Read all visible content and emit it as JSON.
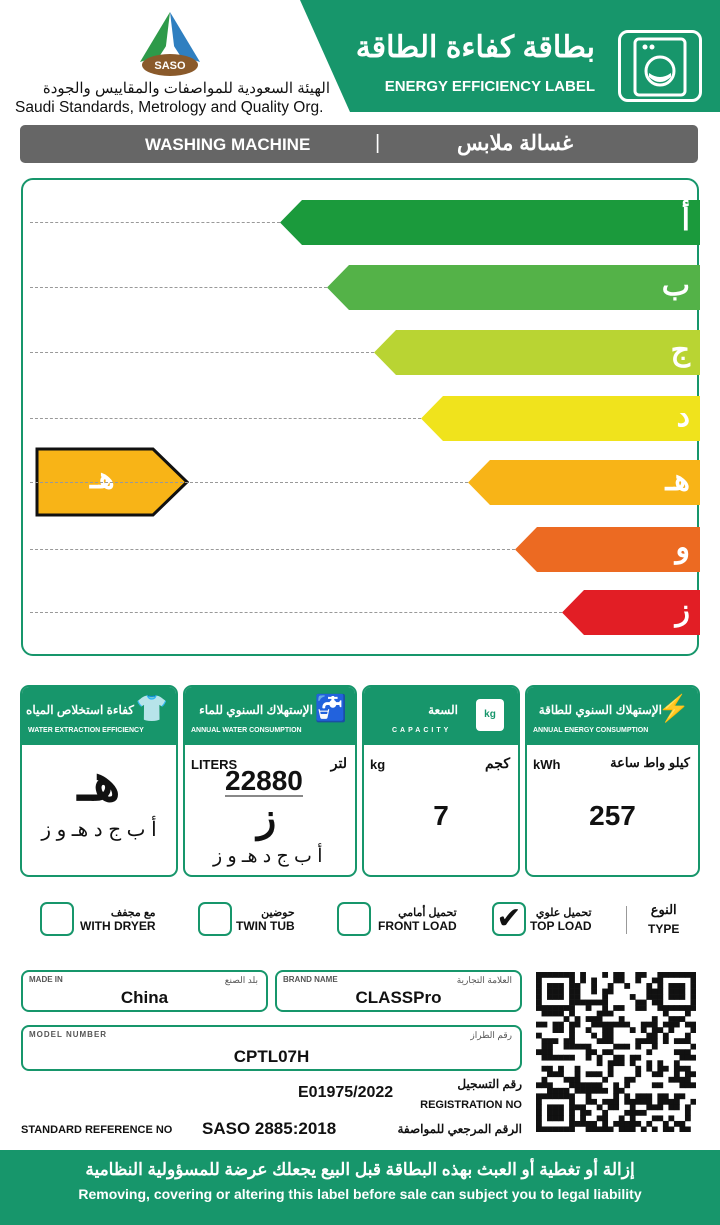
{
  "header": {
    "logo_text": "SASO",
    "org_ar": "الهيئة السعودية للمواصفات والمقاييس والجودة",
    "org_en": "Saudi Standards, Metrology and Quality Org.",
    "title_ar": "بطاقة كفاءة الطاقة",
    "title_en": "ENERGY EFFICIENCY LABEL",
    "icon": "washing-machine-icon"
  },
  "product": {
    "name_en": "WASHING MACHINE",
    "separator": "|",
    "name_ar": "غسالة ملابس"
  },
  "scale": {
    "classes": [
      {
        "label": "أ",
        "color": "#1b9a3c"
      },
      {
        "label": "ب",
        "color": "#54b248"
      },
      {
        "label": "ج",
        "color": "#b9d433"
      },
      {
        "label": "د",
        "color": "#f0e31c"
      },
      {
        "label": "هـ",
        "color": "#f8b417"
      },
      {
        "label": "و",
        "color": "#ec6a22"
      },
      {
        "label": "ز",
        "color": "#e21e25"
      }
    ],
    "rating": "هـ",
    "rating_color": "#f8b417"
  },
  "cards": {
    "water_extraction": {
      "title_ar": "كفاءة استخلاص المياه",
      "title_en": "WATER EXTRACTION EFFICIENCY",
      "value": "هـ",
      "scale": "أ ب ج د هـ و ز",
      "icon": "shirt-drip-icon"
    },
    "water": {
      "title_ar": "الإستهلاك السنوي للماء",
      "title_en": "ANNUAL WATER CONSUMPTION",
      "unit_en": "LITERS",
      "unit_ar": "لتر",
      "value": "22880",
      "class": "ز",
      "scale": "أ ب ج د هـ و ز",
      "icon": "faucet-icon"
    },
    "capacity": {
      "title_ar": "السعة",
      "title_en": "CAPACITY",
      "unit_en": "kg",
      "unit_ar": "كجم",
      "value": "7",
      "icon": "shirt-kg-icon",
      "icon_text": "kg"
    },
    "energy": {
      "title_ar": "الإستهلاك السنوي للطاقة",
      "title_en": "ANNUAL ENERGY CONSUMPTION",
      "unit_en": "kWh",
      "unit_ar": "كيلو واط ساعة",
      "value": "257",
      "icon": "lightning-icon"
    }
  },
  "type": {
    "label_ar": "النوع",
    "label_en": "TYPE",
    "options": [
      {
        "ar": "تحميل علوي",
        "en": "TOP LOAD",
        "checked": true
      },
      {
        "ar": "تحميل أمامي",
        "en": "FRONT LOAD",
        "checked": false
      },
      {
        "ar": "حوضين",
        "en": "TWIN TUB",
        "checked": false
      },
      {
        "ar": "مع مجفف",
        "en": "WITH DRYER",
        "checked": false
      }
    ],
    "check_mark": "✔"
  },
  "info": {
    "made_in": {
      "label_en": "MADE IN",
      "label_ar": "بلد الصنع",
      "value": "China"
    },
    "brand": {
      "label_en": "BRAND NAME",
      "label_ar": "العلامة التجارية",
      "value": "CLASSPro"
    },
    "model": {
      "label_en": "MODEL NUMBER",
      "label_ar": "رقم الطراز",
      "value": "CPTL07H"
    },
    "registration": {
      "label_ar": "رقم التسجيل",
      "label_en": "REGISTRATION NO",
      "value": "E01975/2022"
    },
    "standard": {
      "label_en": "STANDARD REFERENCE NO",
      "label_ar": "الرقم المرجعي للمواصفة",
      "value": "SASO 2885:2018"
    }
  },
  "footer": {
    "warning_ar": "إزالة أو تغطية أو العبث بهذه البطاقة قبل البيع يجعلك عرضة للمسؤولية النظامية",
    "warning_en": "Removing, covering or altering this label before sale can subject you to legal liability"
  }
}
